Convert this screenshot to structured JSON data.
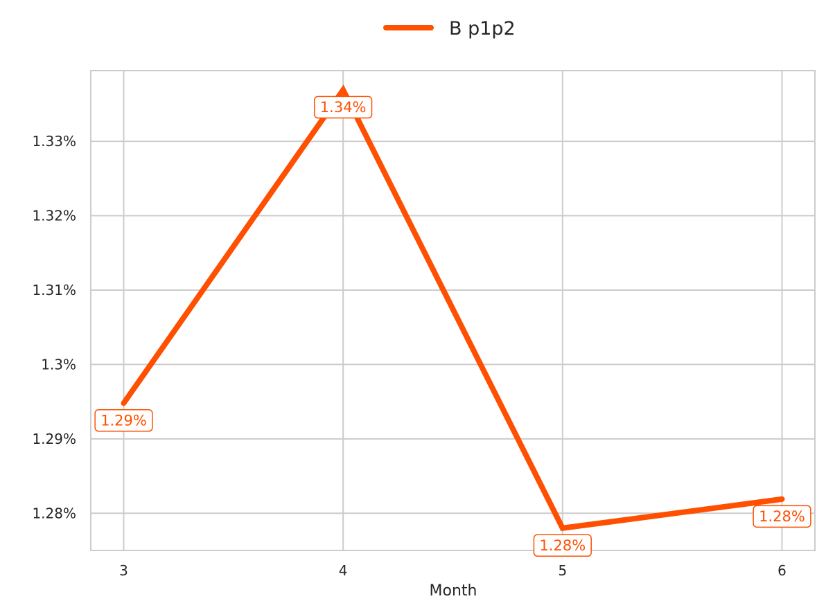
{
  "chart_data": {
    "type": "line",
    "xlabel": "Month",
    "ylabel": "",
    "x": [
      3,
      4,
      5,
      6
    ],
    "x_ticks": [
      "3",
      "4",
      "5",
      "6"
    ],
    "xlim": [
      2.85,
      6.15
    ],
    "ylim": [
      1.275,
      1.3395
    ],
    "y_ticks": [
      1.28,
      1.29,
      1.3,
      1.31,
      1.32,
      1.33
    ],
    "y_tick_labels": [
      "1.28%",
      "1.29%",
      "1.3%",
      "1.31%",
      "1.32%",
      "1.33%"
    ],
    "series": [
      {
        "name": "B p1p2",
        "values": [
          1.2948,
          1.3369,
          1.278,
          1.2819
        ],
        "data_labels": [
          "1.29%",
          "1.34%",
          "1.28%",
          "1.28%"
        ],
        "label_side": [
          "below",
          "below",
          "below",
          "below"
        ],
        "color": "#FF4F00"
      }
    ],
    "grid": true,
    "legend": "top-center"
  }
}
